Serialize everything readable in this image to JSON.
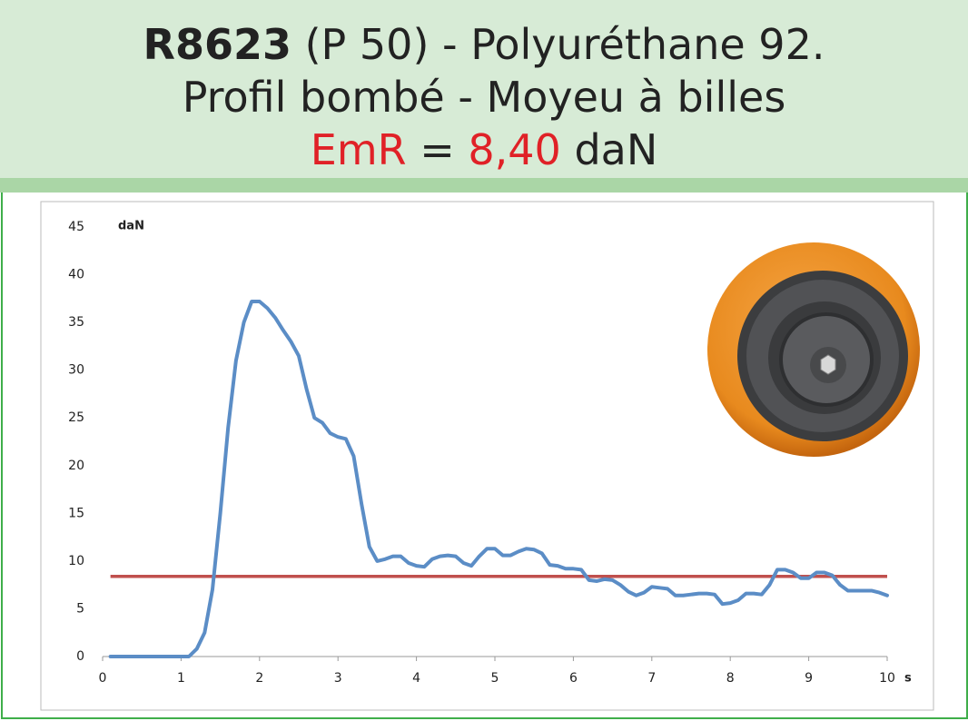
{
  "header": {
    "code": "R8623",
    "line1": "(P 50) - Polyuréthane 92.",
    "line2": "Profil bombé - Moyeu à billes",
    "emr_label": "EmR",
    "equals": "=",
    "emr_unit": "daN"
  },
  "chart_data": {
    "type": "line",
    "y_label": "daN",
    "x_label": "s",
    "x": [
      0.1,
      0.5,
      1.0,
      1.1,
      1.2,
      1.3,
      1.4,
      1.5,
      1.6,
      1.7,
      1.8,
      1.9,
      2.0,
      2.1,
      2.2,
      2.3,
      2.4,
      2.5,
      2.6,
      2.7,
      2.8,
      2.9,
      3.0,
      3.1,
      3.2,
      3.3,
      3.4,
      3.5,
      3.6,
      3.7,
      3.8,
      3.9,
      4.0,
      4.1,
      4.2,
      4.3,
      4.4,
      4.5,
      4.6,
      4.7,
      4.8,
      4.9,
      5.0,
      5.1,
      5.2,
      5.3,
      5.4,
      5.5,
      5.6,
      5.7,
      5.8,
      5.9,
      6.0,
      6.1,
      6.2,
      6.3,
      6.4,
      6.5,
      6.6,
      6.7,
      6.8,
      6.9,
      7.0,
      7.1,
      7.2,
      7.3,
      7.4,
      7.5,
      7.6,
      7.7,
      7.8,
      7.9,
      8.0,
      8.1,
      8.2,
      8.3,
      8.4,
      8.5,
      8.6,
      8.7,
      8.8,
      8.9,
      9.0,
      9.1,
      9.2,
      9.3,
      9.4,
      9.5,
      9.6,
      9.7,
      9.8,
      9.9,
      10.0
    ],
    "series": [
      {
        "color": "#5b8dc6",
        "values": [
          0,
          0,
          0,
          0,
          0.8,
          2.5,
          7,
          15,
          24,
          31,
          35,
          37.2,
          37.2,
          36.5,
          35.5,
          34.2,
          33,
          31.5,
          28,
          25,
          24.5,
          23.4,
          23,
          22.8,
          21,
          16,
          11.5,
          10,
          10.2,
          10.5,
          10.5,
          9.8,
          9.5,
          9.4,
          10.2,
          10.5,
          10.6,
          10.5,
          9.8,
          9.5,
          10.5,
          11.3,
          11.3,
          10.6,
          10.6,
          11,
          11.3,
          11.2,
          10.8,
          9.6,
          9.5,
          9.2,
          9.2,
          9.1,
          8,
          7.9,
          8.1,
          8,
          7.5,
          6.8,
          6.4,
          6.7,
          7.3,
          7.2,
          7.1,
          6.4,
          6.4,
          6.5,
          6.6,
          6.6,
          6.5,
          5.5,
          5.6,
          5.9,
          6.6,
          6.6,
          6.5,
          7.5,
          9.1,
          9.1,
          8.8,
          8.2,
          8.2,
          8.8,
          8.8,
          8.5,
          7.5,
          6.9,
          6.9,
          6.9,
          6.9,
          6.7,
          6.4
        ]
      }
    ],
    "reference_line": {
      "value": 8.4,
      "label": "8,40",
      "color": "#c0504d"
    },
    "xlim": [
      0,
      10
    ],
    "xticks": [
      0,
      1,
      2,
      3,
      4,
      5,
      6,
      7,
      8,
      9,
      10
    ],
    "ylim": [
      0,
      45
    ],
    "yticks": [
      0,
      5,
      10,
      15,
      20,
      25,
      30,
      35,
      40,
      45
    ]
  }
}
